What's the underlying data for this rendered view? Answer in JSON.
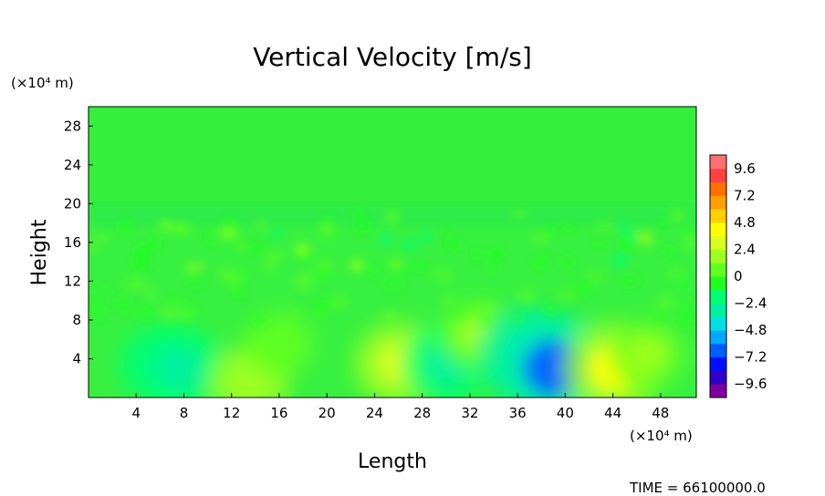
{
  "chart_data": {
    "type": "heatmap",
    "title": "Vertical Velocity [m/s]",
    "xlabel": "Length",
    "ylabel": "Height",
    "x_unit": "(×10⁴ m)",
    "y_unit": "(×10⁴ m)",
    "xlim": [
      0,
      51
    ],
    "ylim": [
      0,
      30
    ],
    "xticks": [
      4,
      8,
      12,
      16,
      20,
      24,
      28,
      32,
      36,
      40,
      44,
      48
    ],
    "yticks": [
      4,
      8,
      12,
      16,
      20,
      24,
      28
    ],
    "colorbar": {
      "vmin": -10.8,
      "vmax": 10.8,
      "labels": [
        "9.6",
        "7.2",
        "4.8",
        "2.4",
        "0",
        "−2.4",
        "−4.8",
        "−7.2",
        "−9.6"
      ],
      "label_values": [
        9.6,
        7.2,
        4.8,
        2.4,
        0,
        -2.4,
        -4.8,
        -7.2,
        -9.6
      ],
      "colors": [
        "#7f00a0",
        "#3000c8",
        "#0010ff",
        "#0060ff",
        "#00a8ff",
        "#00e0e0",
        "#00f0a0",
        "#00ff70",
        "#20ff20",
        "#60ff20",
        "#a0ff20",
        "#d8ff20",
        "#ffff00",
        "#ffd000",
        "#ffa000",
        "#ff7000",
        "#ff4040",
        "#ff7070"
      ]
    },
    "features": [
      {
        "name": "background",
        "x": 25.5,
        "y": 15,
        "value": -0.3
      },
      {
        "name": "turbulent-layer-band",
        "y_center": 18,
        "y_width": 3,
        "value": -0.8
      },
      {
        "name": "downdraft-left",
        "x": 6,
        "y": 3.5,
        "value": -2.6
      },
      {
        "name": "downdraft-8",
        "x": 7.7,
        "y": 3.0,
        "value": -3.5
      },
      {
        "name": "updraft-13",
        "x": 13.5,
        "y": 1.5,
        "value": 2.2
      },
      {
        "name": "updraft-16",
        "x": 16,
        "y": 5.5,
        "value": 1.2
      },
      {
        "name": "updraft-26",
        "x": 26,
        "y": 3.5,
        "value": 3.2
      },
      {
        "name": "downdraft-30",
        "x": 30,
        "y": 3.5,
        "value": -3.0
      },
      {
        "name": "updraft-33",
        "x": 32.5,
        "y": 6.5,
        "value": 1.6
      },
      {
        "name": "downdraft-37",
        "x": 37,
        "y": 4.5,
        "value": -4.6
      },
      {
        "name": "downdraft-39",
        "x": 39,
        "y": 3.0,
        "value": -6.2
      },
      {
        "name": "updraft-44",
        "x": 44,
        "y": 3.0,
        "value": 4.3
      },
      {
        "name": "updraft-47",
        "x": 47,
        "y": 4.5,
        "value": 1.8
      }
    ]
  },
  "footer": {
    "time_label": "TIME = 66100000.0"
  }
}
